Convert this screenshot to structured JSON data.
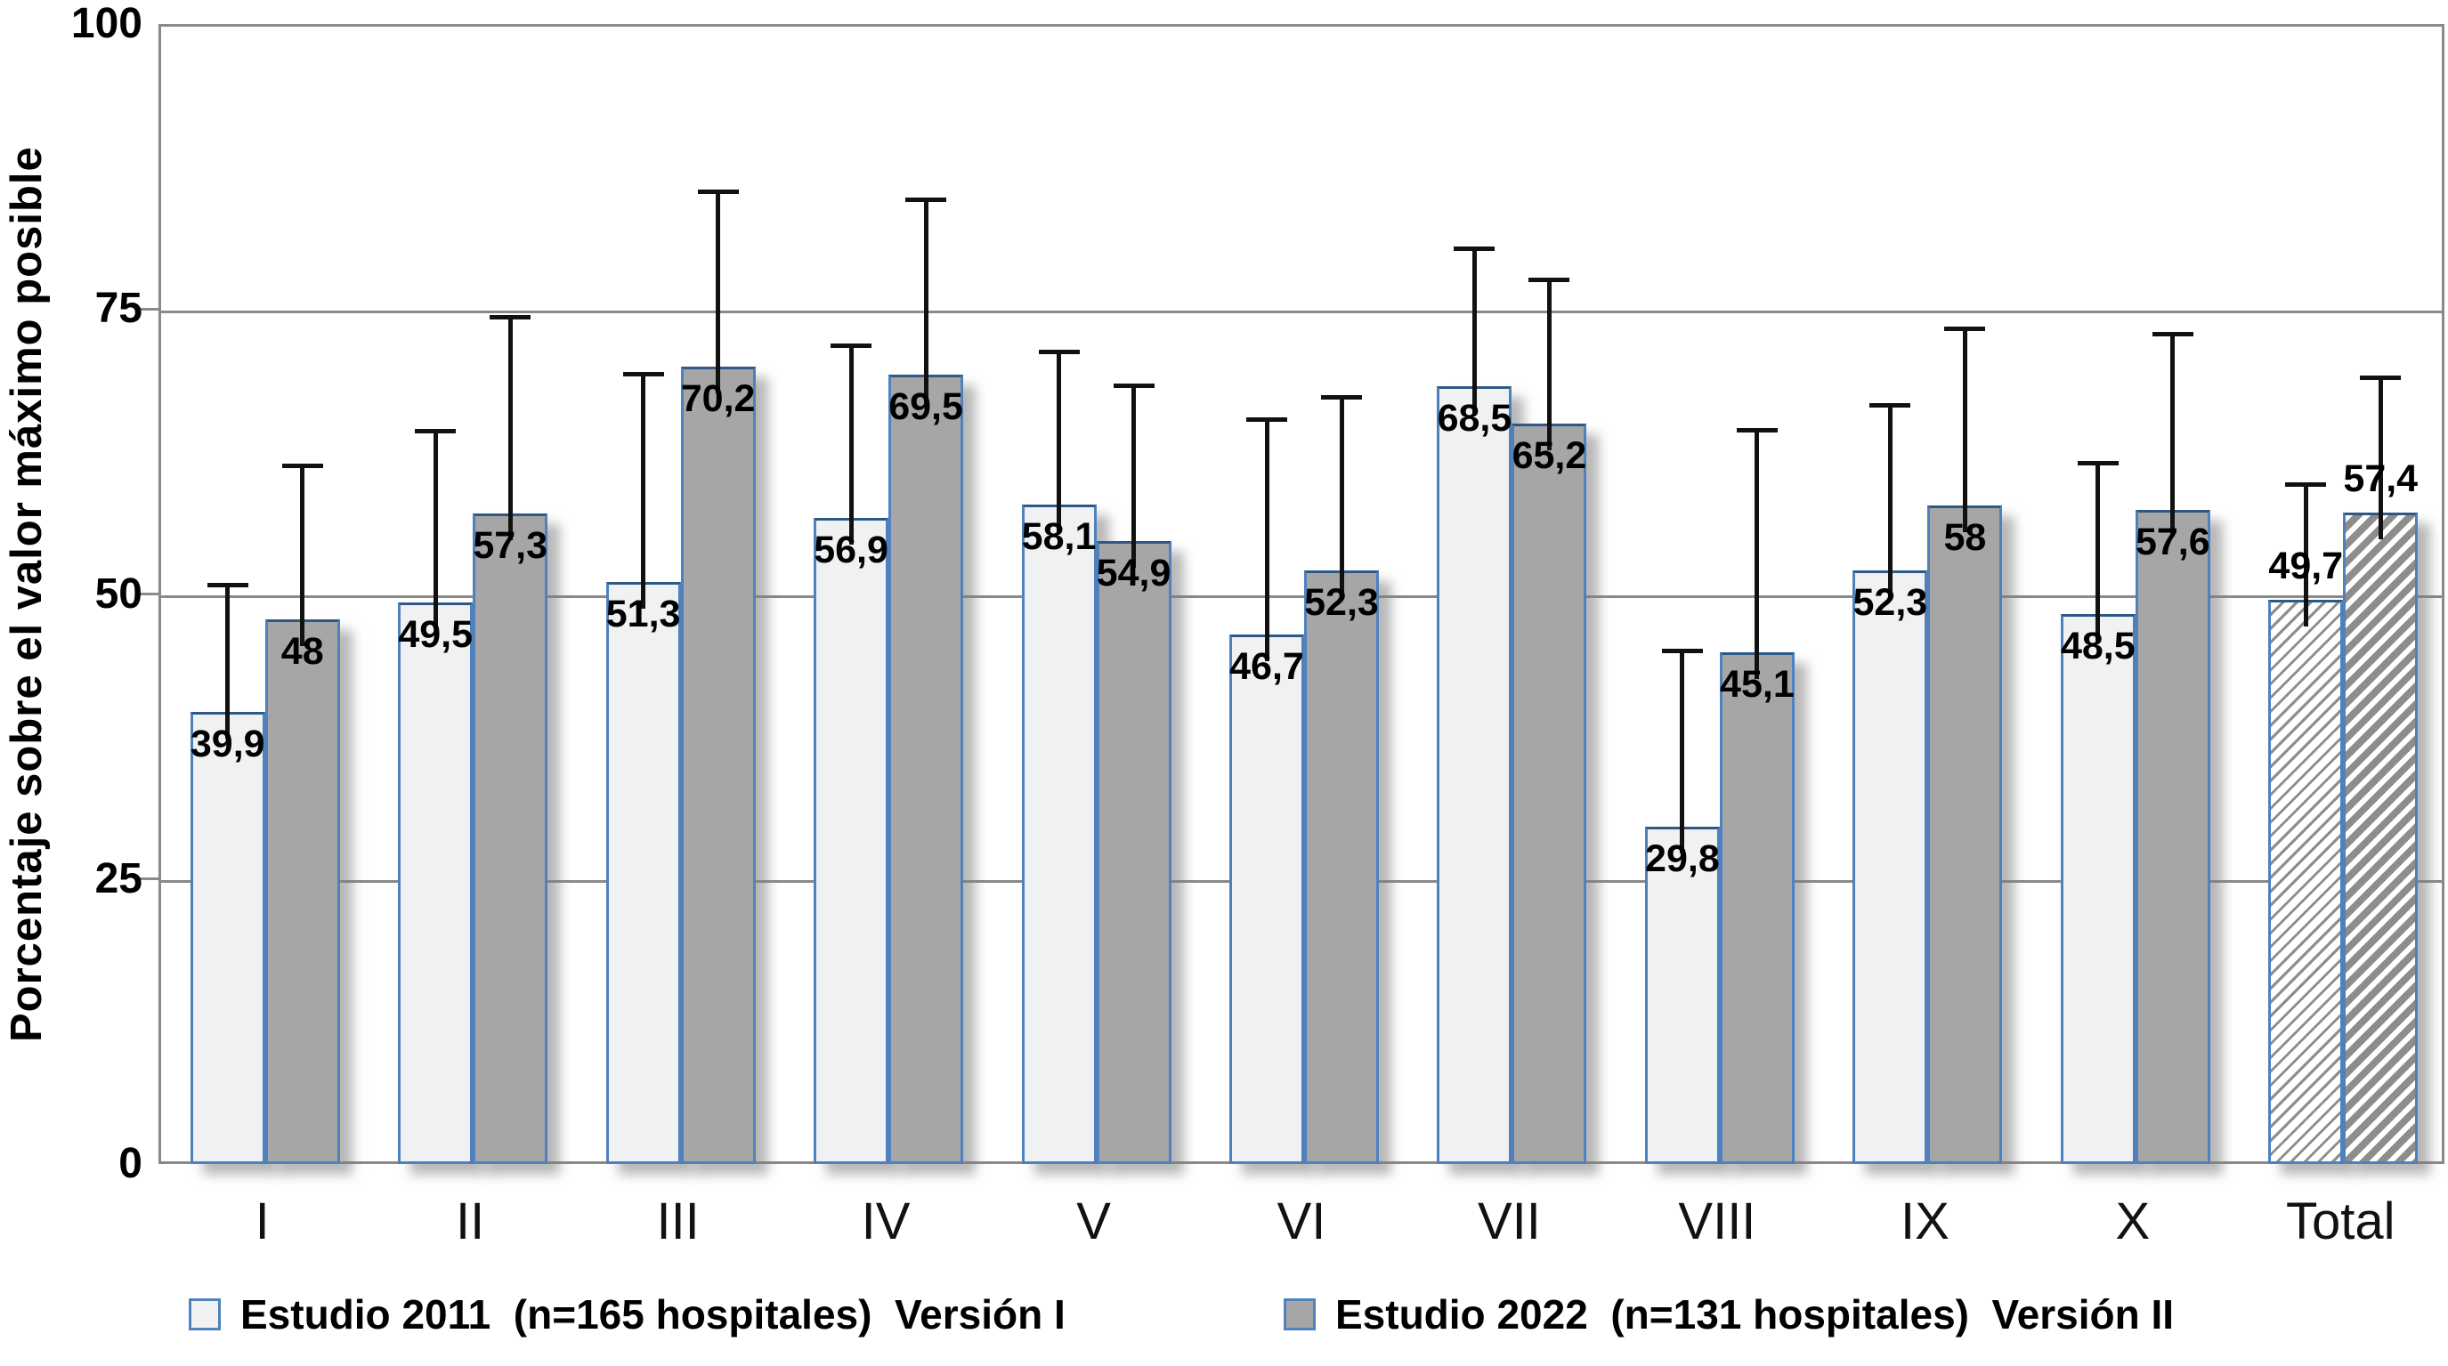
{
  "chart_data": {
    "type": "bar",
    "title": "",
    "ylabel": "Porcentaje sobre el valor máximo posible",
    "xlabel": "",
    "ylim": [
      0,
      100
    ],
    "yticks": [
      0,
      25,
      50,
      75,
      100
    ],
    "ytick_labels": [
      "0",
      "25",
      "50",
      "75",
      "100"
    ],
    "grid": "horizontal",
    "legend_position": "bottom",
    "categories": [
      "I",
      "II",
      "III",
      "IV",
      "V",
      "VI",
      "VII",
      "VIII",
      "IX",
      "X",
      "Total"
    ],
    "series": [
      {
        "name": "Estudio 2011  (n=165 hospitales)  Versión I",
        "values": [
          39.9,
          49.5,
          51.3,
          56.9,
          58.1,
          46.7,
          68.5,
          29.8,
          52.3,
          48.5,
          49.7
        ],
        "labels": [
          "39,9",
          "49,5",
          "51,3",
          "56,9",
          "58,1",
          "46,7",
          "68,5",
          "29,8",
          "52,3",
          "48,5",
          "49,7"
        ],
        "error_bar_tops": [
          51.0,
          64.5,
          69.5,
          72.0,
          71.5,
          65.5,
          80.5,
          45.2,
          66.8,
          61.7,
          59.8
        ],
        "fill": "#eff1f3",
        "total_bar_pattern": "thin-diagonal-hatch"
      },
      {
        "name": "Estudio 2022  (n=131 hospitales)  Versión II",
        "values": [
          48,
          57.3,
          70.2,
          69.5,
          54.9,
          52.3,
          65.2,
          45.1,
          58,
          57.6,
          57.4
        ],
        "labels": [
          "48",
          "57,3",
          "70,2",
          "69,5",
          "54,9",
          "52,3",
          "65,2",
          "45,1",
          "58",
          "57,6",
          "57,4"
        ],
        "error_bar_tops": [
          61.5,
          74.5,
          85.5,
          84.8,
          68.5,
          67.5,
          77.8,
          64.6,
          73.5,
          73.0,
          69.2
        ],
        "fill": "#a6a6a6",
        "total_bar_pattern": "thick-diagonal-hatch"
      }
    ],
    "colors": {
      "bar_border": "#4f81bd",
      "bar_border_top": "#2e5984",
      "gridline": "#8a8a8a",
      "error_bar": "#111111",
      "series_2011_fill": "#eff1f3",
      "series_2022_fill": "#a6a6a6",
      "hatch": "#8d8d8d"
    }
  }
}
